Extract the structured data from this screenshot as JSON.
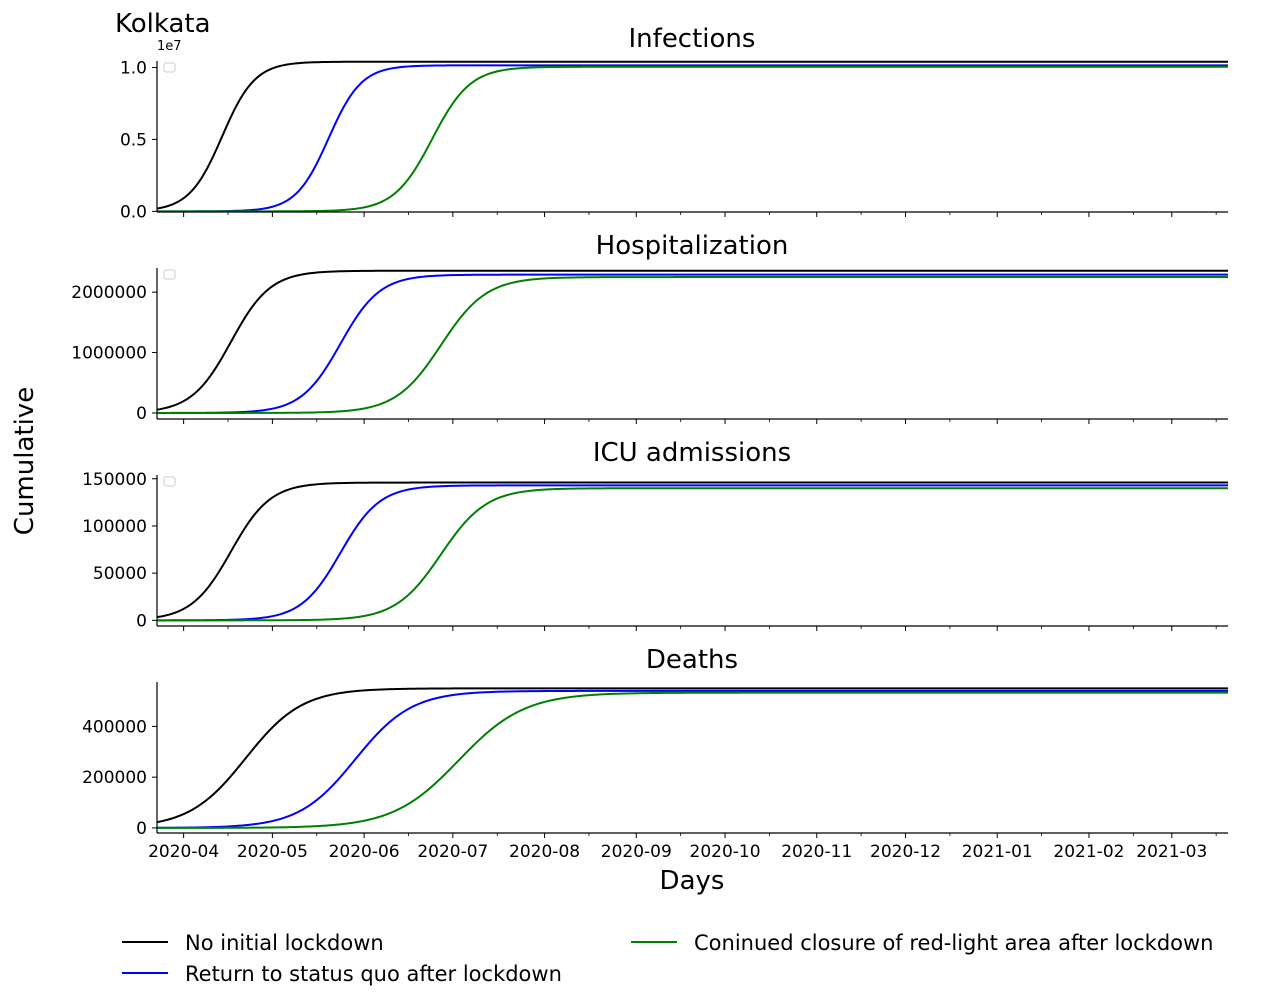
{
  "figure": {
    "city_label": "Kolkata",
    "ylabel": "Cumulative",
    "xlabel": "Days"
  },
  "legend": [
    {
      "label": "No initial lockdown",
      "color": "#000000"
    },
    {
      "label": "Return to status quo after lockdown",
      "color": "#0000ff"
    },
    {
      "label": "Coninued closure of red-light area after lockdown",
      "color": "#008000"
    }
  ],
  "chart_data": [
    {
      "type": "line",
      "title": "Infections",
      "xlabel": "",
      "ylabel": "",
      "ylim": [
        -45000,
        10450000
      ],
      "yticks": [
        0,
        5000000,
        10000000
      ],
      "yticklabels": [
        "0.0",
        "0.5",
        "1.0"
      ],
      "offset_label": "1e7",
      "series": [
        {
          "color": "#000000",
          "final": 10400000,
          "mid": 22,
          "k": 0.18
        },
        {
          "color": "#0000ff",
          "final": 10150000,
          "mid": 58,
          "k": 0.18
        },
        {
          "color": "#008000",
          "final": 10050000,
          "mid": 93,
          "k": 0.155
        }
      ]
    },
    {
      "type": "line",
      "title": "Hospitalization",
      "xlabel": "",
      "ylabel": "",
      "ylim": [
        -100000,
        2400000
      ],
      "yticks": [
        0,
        1000000,
        2000000
      ],
      "yticklabels": [
        "0",
        "1000000",
        "2000000"
      ],
      "series": [
        {
          "color": "#000000",
          "final": 2355000,
          "mid": 25,
          "k": 0.15
        },
        {
          "color": "#0000ff",
          "final": 2290000,
          "mid": 62,
          "k": 0.15
        },
        {
          "color": "#008000",
          "final": 2250000,
          "mid": 96,
          "k": 0.13
        }
      ]
    },
    {
      "type": "line",
      "title": "ICU admissions",
      "xlabel": "",
      "ylabel": "",
      "ylim": [
        -6000,
        154000
      ],
      "yticks": [
        0,
        50000,
        100000,
        150000
      ],
      "yticklabels": [
        "0",
        "50000",
        "100000",
        "150000"
      ],
      "series": [
        {
          "color": "#000000",
          "final": 146000,
          "mid": 25,
          "k": 0.15
        },
        {
          "color": "#0000ff",
          "final": 143000,
          "mid": 62,
          "k": 0.15
        },
        {
          "color": "#008000",
          "final": 140000,
          "mid": 96,
          "k": 0.13
        }
      ]
    },
    {
      "type": "line",
      "title": "Deaths",
      "xlabel": "Days",
      "ylabel": "",
      "ylim": [
        -20000,
        575000
      ],
      "yticks": [
        0,
        200000,
        400000
      ],
      "yticklabels": [
        "0",
        "200000",
        "400000"
      ],
      "xticks": [
        "2020-04",
        "2020-05",
        "2020-06",
        "2020-07",
        "2020-08",
        "2020-09",
        "2020-10",
        "2020-11",
        "2020-12",
        "2021-01",
        "2021-02",
        "2021-03"
      ],
      "series": [
        {
          "color": "#000000",
          "final": 550000,
          "mid": 30,
          "k": 0.105
        },
        {
          "color": "#0000ff",
          "final": 540000,
          "mid": 67,
          "k": 0.105
        },
        {
          "color": "#008000",
          "final": 533000,
          "mid": 102,
          "k": 0.09
        }
      ]
    }
  ]
}
